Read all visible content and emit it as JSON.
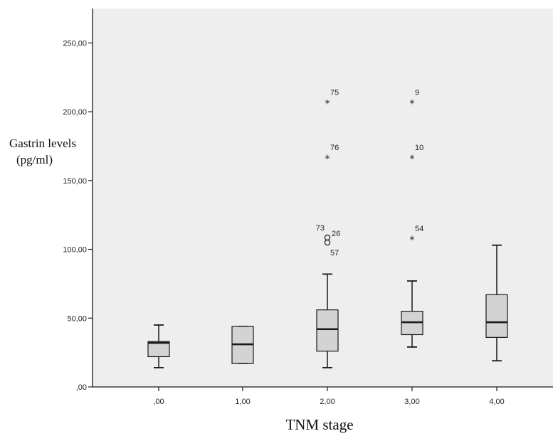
{
  "chart_data": {
    "type": "boxplot",
    "xlabel": "TNM stage",
    "ylabel_line1": "Gastrin levels",
    "ylabel_line2": "(pg/ml)",
    "ylim": [
      0,
      275
    ],
    "y_ticks": [
      {
        "value": 0,
        "label": ",00"
      },
      {
        "value": 50,
        "label": "50,00"
      },
      {
        "value": 100,
        "label": "100,00"
      },
      {
        "value": 150,
        "label": "150,00"
      },
      {
        "value": 200,
        "label": "200,00"
      },
      {
        "value": 250,
        "label": "250,00"
      }
    ],
    "categories": [
      ",00",
      "1,00",
      "2,00",
      "3,00",
      "4,00"
    ],
    "boxes": [
      {
        "category": ",00",
        "whisker_low": 14,
        "q1": 22,
        "median": 32,
        "q3": 33,
        "whisker_high": 45
      },
      {
        "category": "1,00",
        "whisker_low": 17,
        "q1": 17,
        "median": 31,
        "q3": 44,
        "whisker_high": 44
      },
      {
        "category": "2,00",
        "whisker_low": 14,
        "q1": 26,
        "median": 42,
        "q3": 56,
        "whisker_high": 82
      },
      {
        "category": "3,00",
        "whisker_low": 29,
        "q1": 38,
        "median": 47,
        "q3": 55,
        "whisker_high": 77
      },
      {
        "category": "4,00",
        "whisker_low": 19,
        "q1": 36,
        "median": 47,
        "q3": 67,
        "whisker_high": 103
      }
    ],
    "outliers": [
      {
        "category": "2,00",
        "value": 208,
        "marker": "*",
        "label": "75"
      },
      {
        "category": "2,00",
        "value": 168,
        "marker": "*",
        "label": "76"
      },
      {
        "category": "2,00",
        "value": 107,
        "marker": "o",
        "label": "73",
        "label_side": "left-above"
      },
      {
        "category": "2,00",
        "value": 107,
        "marker": "o",
        "label": "26",
        "label_side": "right"
      },
      {
        "category": "2,00",
        "value": 107,
        "marker": "o",
        "label": "57",
        "label_side": "below"
      },
      {
        "category": "3,00",
        "value": 208,
        "marker": "*",
        "label": "9"
      },
      {
        "category": "3,00",
        "value": 168,
        "marker": "*",
        "label": "10"
      },
      {
        "category": "3,00",
        "value": 109,
        "marker": "*",
        "label": "54"
      }
    ],
    "colors": {
      "plot_background": "#eeeeee",
      "box_fill": "#d3d3d3",
      "stroke": "#1a1a1a"
    }
  }
}
